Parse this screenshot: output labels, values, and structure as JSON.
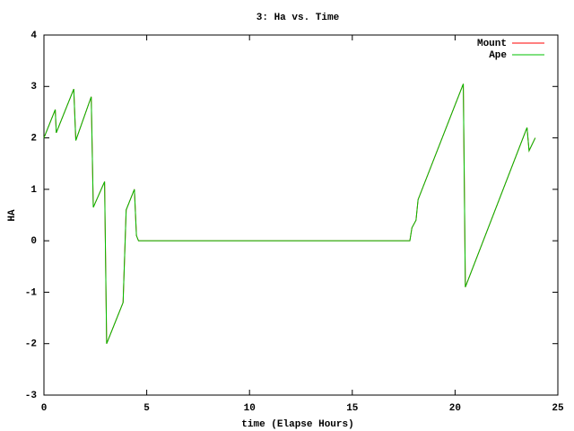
{
  "chart_data": {
    "type": "line",
    "title": "3: Ha vs. Time",
    "x_label": "time (Elapse Hours)",
    "y_label": "HA",
    "x": [
      0,
      0.55,
      0.6,
      1.45,
      1.55,
      2.3,
      2.4,
      2.95,
      3.05,
      3.85,
      4.0,
      4.4,
      4.5,
      4.6,
      17.8,
      17.9,
      18.1,
      18.2,
      20.4,
      20.5,
      23.5,
      23.6,
      23.9
    ],
    "series": [
      {
        "name": "Mount",
        "color": "#ff0000",
        "values": [
          2.0,
          2.55,
          2.1,
          2.95,
          1.95,
          2.8,
          0.65,
          1.15,
          -2.0,
          -1.2,
          0.6,
          1.0,
          0.1,
          0.0,
          0.0,
          0.25,
          0.4,
          0.8,
          3.05,
          -0.9,
          2.2,
          1.75,
          2.0
        ]
      },
      {
        "name": "Ape",
        "color": "#00c000",
        "values": [
          2.0,
          2.55,
          2.1,
          2.95,
          1.95,
          2.8,
          0.65,
          1.15,
          -2.0,
          -1.2,
          0.6,
          1.0,
          0.1,
          0.0,
          0.0,
          0.25,
          0.4,
          0.8,
          3.05,
          -0.9,
          2.2,
          1.75,
          2.0
        ]
      }
    ],
    "xlim": [
      0,
      25
    ],
    "xticks": [
      0,
      5,
      10,
      15,
      20,
      25
    ],
    "ylim": [
      -3,
      4
    ],
    "yticks": [
      -3,
      -2,
      -1,
      0,
      1,
      2,
      3,
      4
    ],
    "legend": "upper right"
  }
}
